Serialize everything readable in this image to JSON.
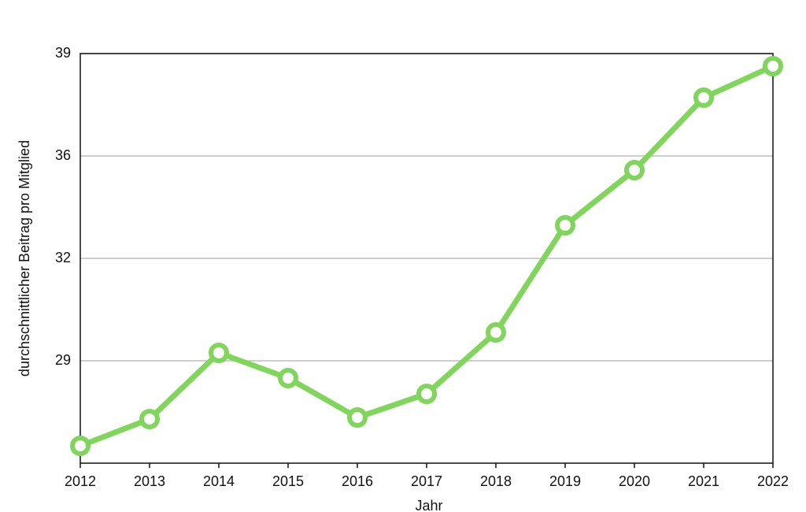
{
  "chart_data": {
    "type": "line",
    "x_label": "Jahr",
    "y_label": "durchschnittlicher Beitrag pro Mitglied",
    "x": [
      2012,
      2013,
      2014,
      2015,
      2016,
      2017,
      2018,
      2019,
      2020,
      2021,
      2022
    ],
    "series": [
      {
        "name": "durchschnittlicher Beitrag pro Mitglied",
        "color": "#7fd65a",
        "values": [
          26.55,
          27.4,
          29.5,
          28.7,
          27.45,
          28.2,
          30.15,
          33.55,
          35.3,
          37.6,
          38.6
        ]
      }
    ],
    "xlim": [
      2012,
      2022
    ],
    "xticks": [
      2012,
      2013,
      2014,
      2015,
      2016,
      2017,
      2018,
      2019,
      2020,
      2021,
      2022
    ],
    "ylim": [
      26,
      39
    ],
    "yticks": [
      {
        "value": 29.25,
        "label": "29"
      },
      {
        "value": 32.5,
        "label": "32"
      },
      {
        "value": 35.75,
        "label": "36"
      },
      39
    ],
    "grid": true
  }
}
